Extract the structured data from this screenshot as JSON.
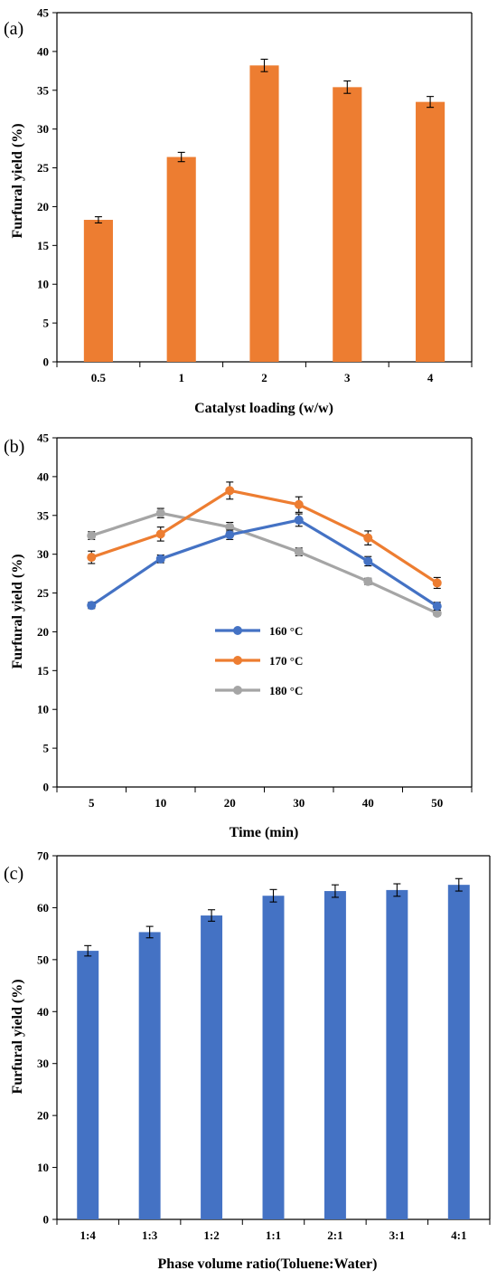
{
  "chart_data": [
    {
      "type": "bar",
      "panel_label": "(a)",
      "categories": [
        "0.5",
        "1",
        "2",
        "3",
        "4"
      ],
      "values": [
        18.3,
        26.4,
        38.2,
        35.4,
        33.5
      ],
      "errors": [
        0.4,
        0.6,
        0.8,
        0.8,
        0.7
      ],
      "xlabel": "Catalyst loading (w/w)",
      "ylabel": "Furfural yield (%)",
      "ylim": [
        0,
        45
      ],
      "yticks": [
        0,
        5,
        10,
        15,
        20,
        25,
        30,
        35,
        40,
        45
      ],
      "color": "#ED7D31",
      "grid": false
    },
    {
      "type": "line",
      "panel_label": "(b)",
      "categories": [
        "5",
        "10",
        "20",
        "30",
        "40",
        "50"
      ],
      "series": [
        {
          "name": "160 °C",
          "color": "#4472C4",
          "values": [
            23.4,
            29.4,
            32.5,
            34.4,
            29.1,
            23.3
          ],
          "errors": [
            0.4,
            0.5,
            0.6,
            0.8,
            0.6,
            0.5
          ]
        },
        {
          "name": "170 °C",
          "color": "#ED7D31",
          "values": [
            29.6,
            32.6,
            38.2,
            36.4,
            32.1,
            26.3
          ],
          "errors": [
            0.8,
            0.9,
            1.1,
            1.0,
            0.9,
            0.7
          ]
        },
        {
          "name": "180 °C",
          "color": "#A5A5A5",
          "values": [
            32.4,
            35.3,
            33.5,
            30.3,
            26.5,
            22.4
          ],
          "errors": [
            0.5,
            0.6,
            0.6,
            0.5,
            0.4,
            0.3
          ]
        }
      ],
      "xlabel": "Time (min)",
      "ylabel": "Furfural yield (%)",
      "ylim": [
        0,
        45
      ],
      "yticks": [
        0,
        5,
        10,
        15,
        20,
        25,
        30,
        35,
        40,
        45
      ],
      "legend": "center-left",
      "grid": false
    },
    {
      "type": "bar",
      "panel_label": "(c)",
      "categories": [
        "1:4",
        "1:3",
        "1:2",
        "1:1",
        "2:1",
        "3:1",
        "4:1"
      ],
      "values": [
        51.7,
        55.3,
        58.5,
        62.3,
        63.2,
        63.4,
        64.4
      ],
      "errors": [
        1.0,
        1.1,
        1.1,
        1.2,
        1.2,
        1.2,
        1.2
      ],
      "xlabel": "Phase volume ratio(Toluene:Water)",
      "ylabel": "Furfural yield (%)",
      "ylim": [
        0,
        70
      ],
      "yticks": [
        0,
        10,
        20,
        30,
        40,
        50,
        60,
        70
      ],
      "color": "#4472C4",
      "grid": false
    }
  ]
}
